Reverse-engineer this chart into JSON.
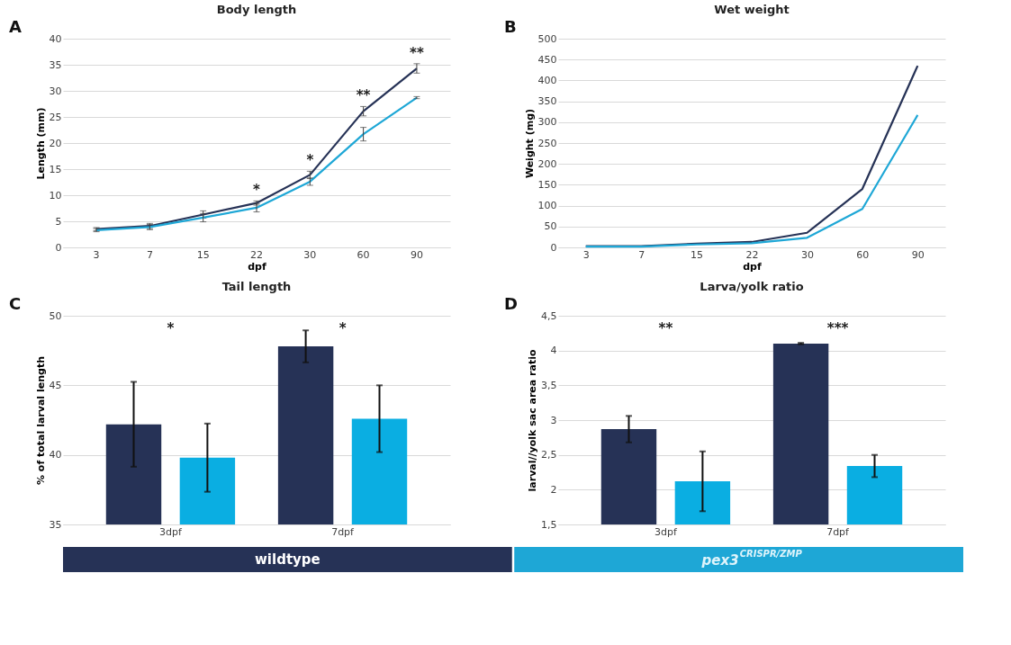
{
  "chart_data": [
    {
      "type": "line",
      "title": "Body length",
      "xlabel": "dpf",
      "ylabel": "Length (mm)",
      "categories": [
        "3",
        "7",
        "15",
        "22",
        "30",
        "60",
        "90"
      ],
      "ylim": [
        0,
        40
      ],
      "yticks": [
        0,
        5,
        10,
        15,
        20,
        25,
        30,
        35,
        40
      ],
      "grid": "y",
      "legend": "bottom",
      "series": [
        {
          "name": "wildtype",
          "color": "#263256",
          "values": [
            3.5,
            4.1,
            6.3,
            8.5,
            13.9,
            26.1,
            34.3
          ],
          "errors": [
            0.3,
            0.5,
            0.7,
            0.4,
            0.7,
            0.9,
            0.9
          ]
        },
        {
          "name": "pex3$^{CRISPR/ZMP}$",
          "color": "#1ea7d6",
          "values": [
            3.3,
            3.9,
            5.7,
            7.6,
            12.6,
            21.7,
            28.7
          ],
          "errors": [
            0.3,
            0.5,
            0.8,
            0.8,
            0.7,
            1.3,
            0.2
          ]
        }
      ],
      "annotations": [
        "A",
        {
          "text": "*",
          "x": "22",
          "y": 8.9
        },
        {
          "text": "*",
          "x": "30",
          "y": 14.6
        },
        {
          "text": "**",
          "x": "60",
          "y": 27
        },
        {
          "text": "**",
          "x": "90",
          "y": 35.2
        }
      ]
    },
    {
      "type": "line",
      "title": "Wet weight",
      "xlabel": "dpf",
      "ylabel": "Weight (mg)",
      "categories": [
        "3",
        "7",
        "15",
        "22",
        "30",
        "60",
        "90"
      ],
      "ylim": [
        0,
        500
      ],
      "yticks": [
        0,
        50,
        100,
        150,
        200,
        250,
        300,
        350,
        400,
        450,
        500
      ],
      "grid": "y",
      "series": [
        {
          "color": "#263256",
          "values": [
            3,
            3,
            9,
            13,
            35,
            140,
            435
          ]
        },
        {
          "color": "#1ea7d6",
          "values": [
            2,
            2,
            7,
            10,
            23,
            92,
            317
          ]
        }
      ],
      "annotations": [
        "B"
      ]
    },
    {
      "type": "bar",
      "title": "Tail length",
      "ylabel": "% of total larval length",
      "categories": [
        "3dpf",
        "7dpf"
      ],
      "ylim": [
        35,
        50
      ],
      "yticks": [
        35,
        40,
        45,
        50
      ],
      "grid": "y",
      "series": [
        {
          "color": "#263256",
          "values": [
            42.2,
            47.8
          ],
          "errors": [
            3.05,
            1.15
          ]
        },
        {
          "color": "#0aaee2",
          "values": [
            39.8,
            42.6
          ],
          "errors": [
            2.45,
            2.4
          ]
        }
      ],
      "annotations": [
        "C",
        "*",
        "*"
      ]
    },
    {
      "type": "bar",
      "title": "Larva/yolk ratio",
      "ylabel": "larval//yolk sac area ratio",
      "categories": [
        "3dpf",
        "7dpf"
      ],
      "ylim": [
        1.5,
        4.5
      ],
      "yticks": [
        {
          "value": 1.5,
          "label": "1,5"
        },
        2,
        {
          "value": 2.5,
          "label": "2,5"
        },
        3,
        {
          "value": 3.5,
          "label": "3,5"
        },
        4,
        {
          "value": 4.5,
          "label": "4,5"
        }
      ],
      "grid": "y",
      "series": [
        {
          "color": "#263256",
          "values": [
            2.87,
            4.1
          ],
          "errors": [
            0.19,
            0.01
          ]
        },
        {
          "color": "#0aaee2",
          "values": [
            2.12,
            2.34
          ],
          "errors": [
            0.43,
            0.16
          ]
        }
      ],
      "annotations": [
        "D",
        "**",
        "***"
      ]
    }
  ]
}
